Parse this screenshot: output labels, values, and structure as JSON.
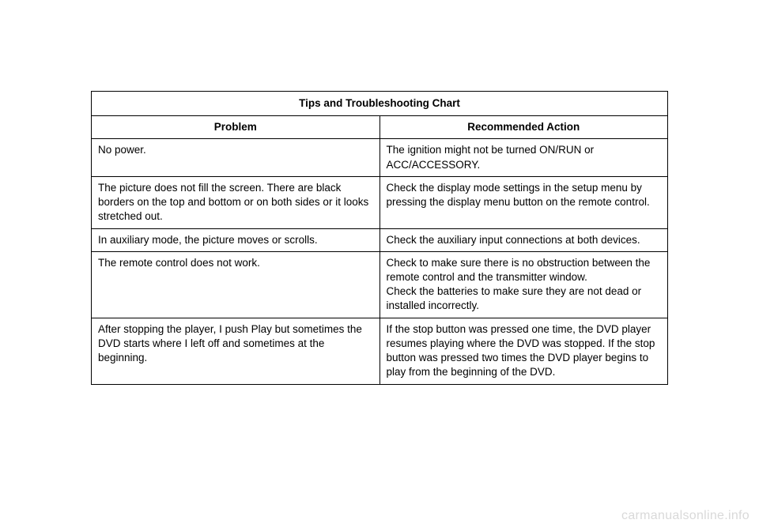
{
  "table": {
    "title": "Tips and Troubleshooting Chart",
    "headers": {
      "problem": "Problem",
      "action": "Recommended Action"
    },
    "rows": [
      {
        "problem": "No power.",
        "action": "The ignition might not be turned ON/RUN or ACC/ACCESSORY."
      },
      {
        "problem": "The picture does not fill the screen. There are black borders on the top and bottom or on both sides or it looks stretched out.",
        "action": "Check the display mode settings in the setup menu by pressing the display menu button on the remote control."
      },
      {
        "problem": "In auxiliary mode, the picture moves or scrolls.",
        "action": "Check the auxiliary input connections at both devices."
      },
      {
        "problem": "The remote control does not work.",
        "action": "Check to make sure there is no obstruction between the remote control and the transmitter window.\nCheck the batteries to make sure they are not dead or installed incorrectly."
      },
      {
        "problem": "After stopping the player, I push Play but sometimes the DVD starts where I left off and sometimes at the beginning.",
        "action": "If the stop button was pressed one time, the DVD player resumes playing where the DVD was stopped. If the stop button was pressed two times the DVD player begins to play from the beginning of the DVD."
      }
    ]
  },
  "watermark": "carmanualsonline.info",
  "styling": {
    "page_bg": "#ffffff",
    "border_color": "#000000",
    "text_color": "#000000",
    "watermark_color": "#d9d9d9",
    "font_family": "Arial, Helvetica, sans-serif",
    "body_fontsize": 13.5,
    "title_fontsize": 13.5
  }
}
